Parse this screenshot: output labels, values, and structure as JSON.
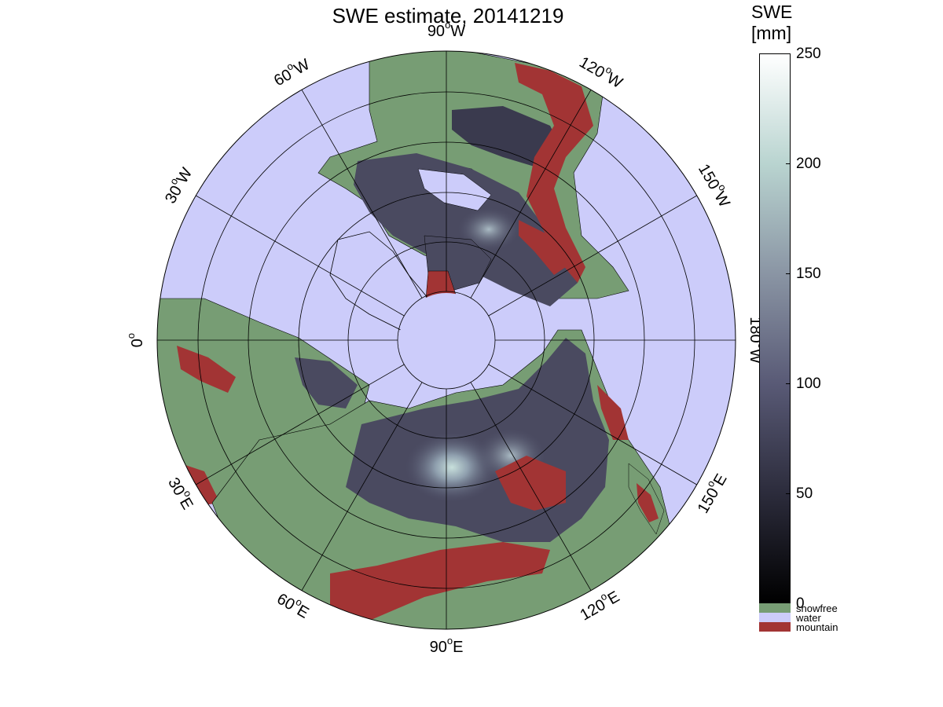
{
  "title": "SWE estimate, 20141219",
  "colorbar": {
    "title_line1": "SWE",
    "title_line2": "[mm]",
    "ticks": [
      "250",
      "200",
      "150",
      "100",
      "50",
      "0"
    ],
    "range": [
      0,
      250
    ],
    "gradient": [
      "#000000",
      "#2c2c3c",
      "#595a76",
      "#8a95a4",
      "#b9d4d0",
      "#ffffff"
    ],
    "categories": [
      {
        "label": "snowfree",
        "color": "#779d74"
      },
      {
        "label": "water",
        "color": "#ccccfa"
      },
      {
        "label": "mountain",
        "color": "#a23434"
      }
    ]
  },
  "map": {
    "projection": "north polar stereographic",
    "ocean_color": "#ccccfa",
    "snowfree_color": "#779d74",
    "mountain_color": "#a23434",
    "snow_color": "#4a4a60",
    "meridian_labels": [
      {
        "deg": "90",
        "hemi": "W",
        "angle": 0
      },
      {
        "deg": "120",
        "hemi": "W",
        "angle": 30
      },
      {
        "deg": "150",
        "hemi": "W",
        "angle": 60
      },
      {
        "deg": "180",
        "hemi": "W",
        "angle": 90
      },
      {
        "deg": "150",
        "hemi": "E",
        "angle": 120
      },
      {
        "deg": "120",
        "hemi": "E",
        "angle": 150
      },
      {
        "deg": "90",
        "hemi": "E",
        "angle": 180
      },
      {
        "deg": "60",
        "hemi": "E",
        "angle": 210
      },
      {
        "deg": "30",
        "hemi": "E",
        "angle": 240
      },
      {
        "deg": "0",
        "hemi": "",
        "angle": 270
      },
      {
        "deg": "30",
        "hemi": "W",
        "angle": 300
      },
      {
        "deg": "60",
        "hemi": "W",
        "angle": 330
      }
    ]
  }
}
